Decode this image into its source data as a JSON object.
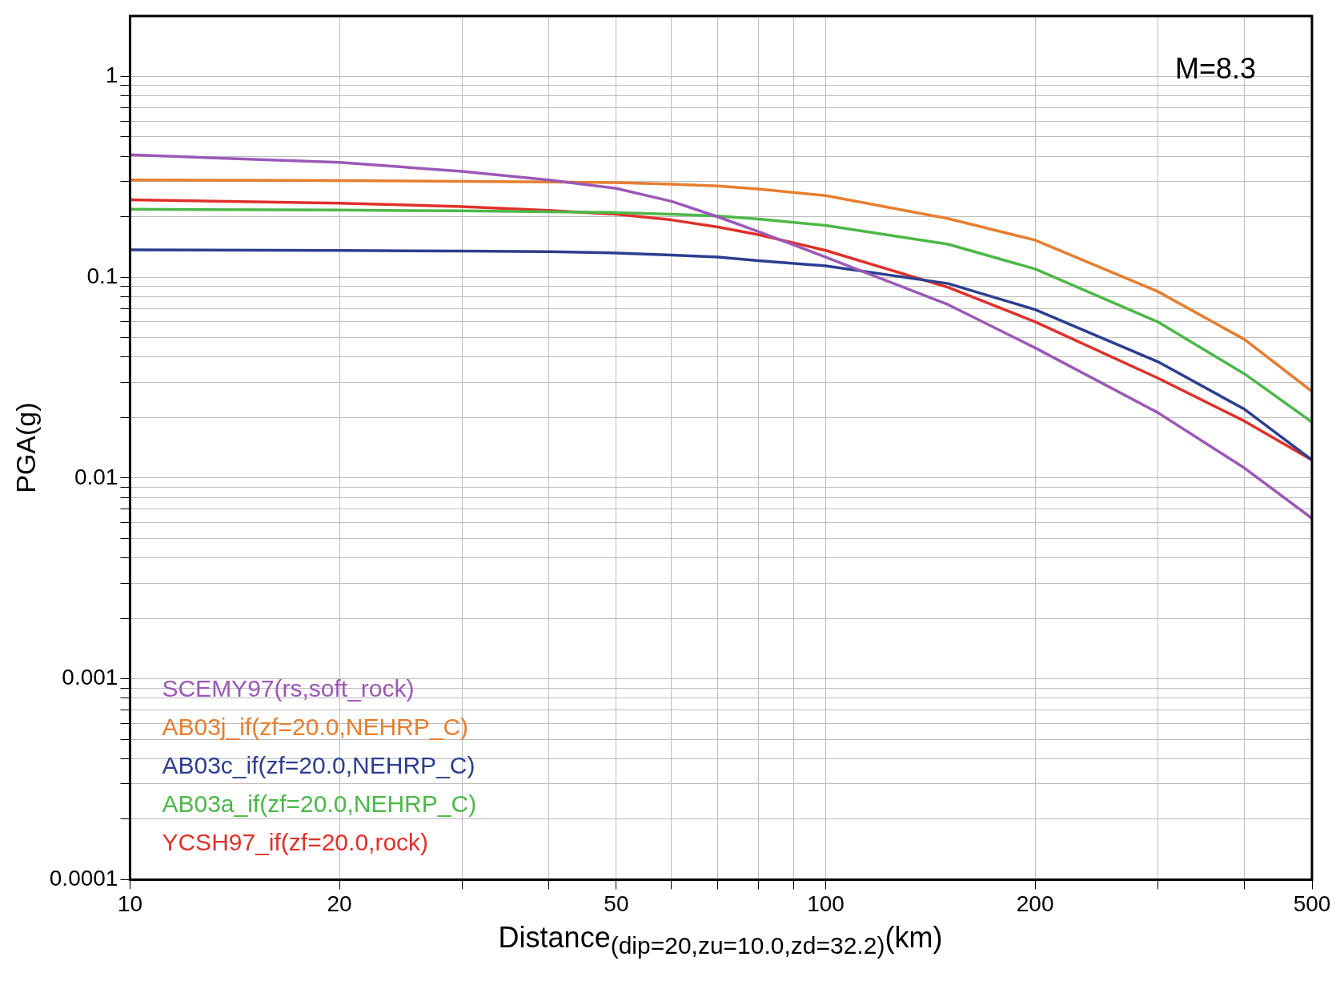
{
  "chart_data": {
    "type": "line",
    "xlabel": "Distance$_{(dip=20,zu=10.0,zd=32.2)}$(km)",
    "ylabel": "PGA(g)",
    "log": "xy",
    "grid": true,
    "legend": "bottom left",
    "marker": "none",
    "line_style": "solid",
    "annotations": [
      "M=8.3"
    ],
    "x": [
      10,
      20,
      30,
      40,
      50,
      60,
      70,
      80,
      100,
      150,
      200,
      300,
      400,
      500
    ],
    "xlim": [
      10,
      500
    ],
    "xticks": [
      10,
      20,
      {
        "value": 30,
        "label": null
      },
      {
        "value": 40,
        "label": null
      },
      50,
      {
        "value": 60,
        "label": null
      },
      {
        "value": 70,
        "label": null
      },
      {
        "value": 80,
        "label": null
      },
      {
        "value": 90,
        "label": null
      },
      100,
      200,
      {
        "value": 300,
        "label": null
      },
      {
        "value": 400,
        "label": null
      },
      500
    ],
    "ylim": [
      0.0001,
      2
    ],
    "yticks": [
      0.0001,
      {
        "value": 0.0002,
        "label": null
      },
      {
        "value": 0.0003,
        "label": null
      },
      {
        "value": 0.0004,
        "label": null
      },
      {
        "value": 0.0005,
        "label": null
      },
      {
        "value": 0.0006,
        "label": null
      },
      {
        "value": 0.0007,
        "label": null
      },
      {
        "value": 0.0008,
        "label": null
      },
      {
        "value": 0.0009,
        "label": null
      },
      0.001,
      {
        "value": 0.002,
        "label": null
      },
      {
        "value": 0.003,
        "label": null
      },
      {
        "value": 0.004,
        "label": null
      },
      {
        "value": 0.005,
        "label": null
      },
      {
        "value": 0.006,
        "label": null
      },
      {
        "value": 0.007,
        "label": null
      },
      {
        "value": 0.008,
        "label": null
      },
      {
        "value": 0.009,
        "label": null
      },
      0.01,
      {
        "value": 0.02,
        "label": null
      },
      {
        "value": 0.03,
        "label": null
      },
      {
        "value": 0.04,
        "label": null
      },
      {
        "value": 0.05,
        "label": null
      },
      {
        "value": 0.06,
        "label": null
      },
      {
        "value": 0.07,
        "label": null
      },
      {
        "value": 0.08,
        "label": null
      },
      {
        "value": 0.09,
        "label": null
      },
      0.1,
      {
        "value": 0.2,
        "label": null
      },
      {
        "value": 0.3,
        "label": null
      },
      {
        "value": 0.4,
        "label": null
      },
      {
        "value": 0.5,
        "label": null
      },
      {
        "value": 0.6,
        "label": null
      },
      {
        "value": 0.7,
        "label": null
      },
      {
        "value": 0.8,
        "label": null
      },
      {
        "value": 0.9,
        "label": null
      },
      1
    ],
    "series": [
      {
        "name": "SCEMY97(rs,soft_rock)",
        "color": "#9b59b6",
        "values": [
          0.407,
          0.373,
          0.337,
          0.305,
          0.277,
          0.239,
          0.2,
          0.169,
          0.126,
          0.073,
          0.0445,
          0.0212,
          0.0112,
          0.0063
        ]
      },
      {
        "name": "AB03j_if(zf=20.0,NEHRP_C)",
        "color": "#e67e30",
        "values": [
          0.305,
          0.303,
          0.3,
          0.298,
          0.296,
          0.291,
          0.285,
          0.275,
          0.255,
          0.196,
          0.153,
          0.085,
          0.049,
          0.027
        ]
      },
      {
        "name": "AB03c_if(zf=20.0,NEHRP_C)",
        "color": "#2c3e8f",
        "values": [
          0.137,
          0.136,
          0.135,
          0.134,
          0.132,
          0.129,
          0.126,
          0.121,
          0.114,
          0.093,
          0.069,
          0.038,
          0.022,
          0.0123
        ]
      },
      {
        "name": "AB03a_if(zf=20.0,NEHRP_C)",
        "color": "#4cb848",
        "values": [
          0.218,
          0.216,
          0.214,
          0.212,
          0.21,
          0.206,
          0.202,
          0.195,
          0.181,
          0.146,
          0.11,
          0.06,
          0.033,
          0.019
        ]
      },
      {
        "name": "YCSH97_if(zf=20.0,rock)",
        "color": "#e0302a",
        "values": [
          0.243,
          0.234,
          0.225,
          0.215,
          0.206,
          0.193,
          0.178,
          0.163,
          0.136,
          0.089,
          0.06,
          0.0315,
          0.0192,
          0.0123
        ]
      }
    ]
  }
}
